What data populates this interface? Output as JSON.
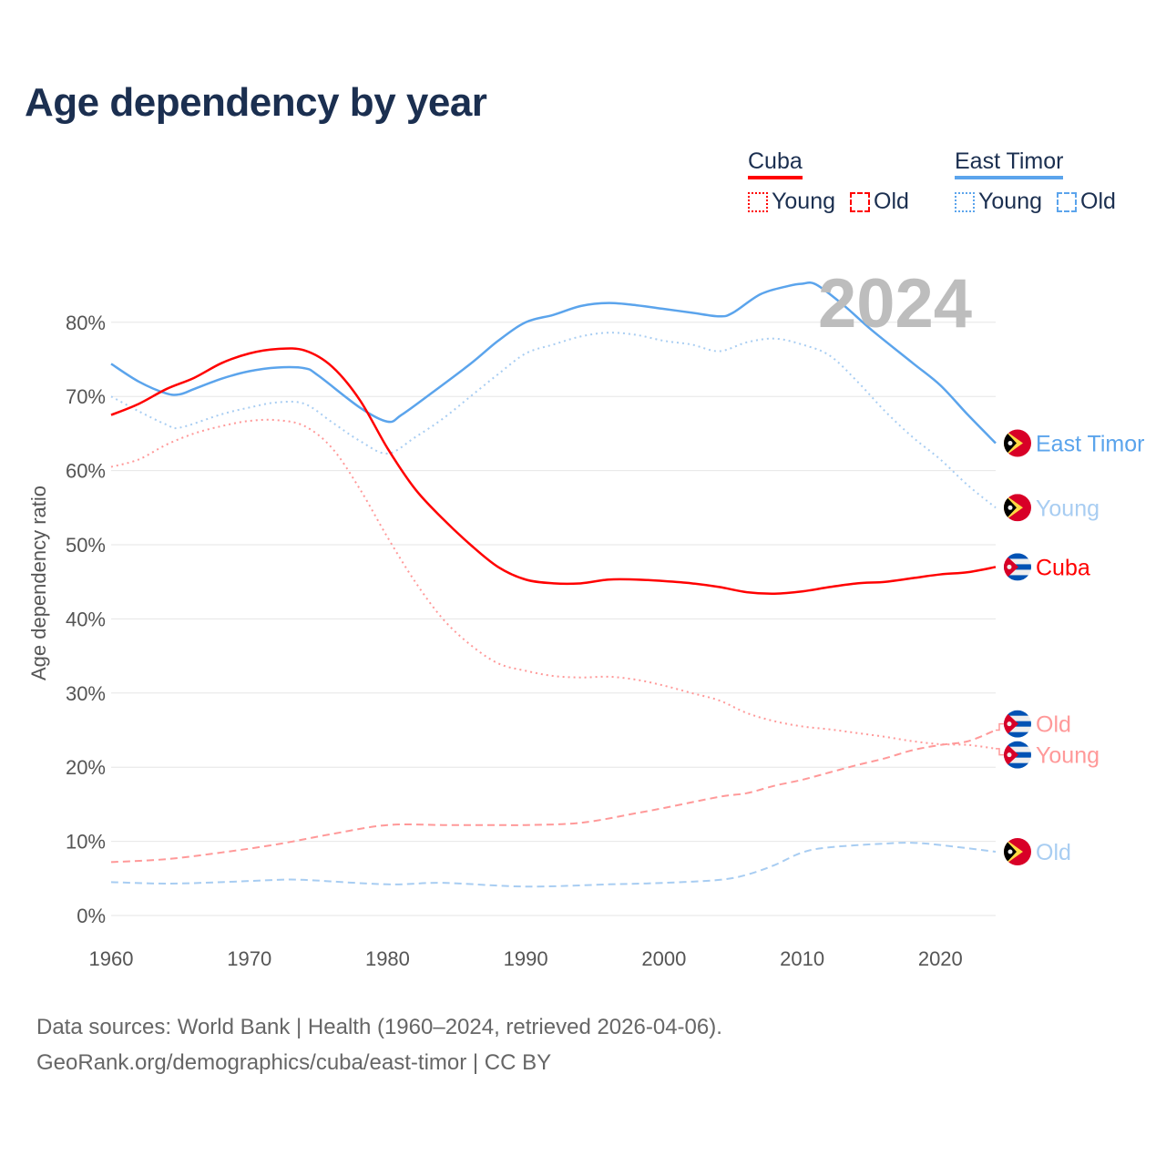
{
  "title": "Age dependency by year",
  "year_badge": "2024",
  "legend": {
    "cuba": {
      "name": "Cuba",
      "young": "Young",
      "old": "Old",
      "color": "#ff0000"
    },
    "east_timor": {
      "name": "East Timor",
      "young": "Young",
      "old": "Old",
      "color": "#5ba4ec"
    }
  },
  "footer": {
    "line1": "Data sources: World Bank | Health (1960–2024, retrieved 2026-04-06).",
    "line2": "GeoRank.org/demographics/cuba/east-timor | CC BY"
  },
  "chart_data": {
    "type": "line",
    "title": "Age dependency by year",
    "xlabel": "",
    "ylabel": "Age dependency ratio",
    "xlim": [
      1960,
      2024
    ],
    "ylim": [
      0,
      85
    ],
    "x_ticks": [
      1960,
      1970,
      1980,
      1990,
      2000,
      2010,
      2020
    ],
    "y_ticks": [
      0,
      10,
      20,
      30,
      40,
      50,
      60,
      70,
      80
    ],
    "y_tick_labels": [
      "0%",
      "10%",
      "20%",
      "30%",
      "40%",
      "50%",
      "60%",
      "70%",
      "80%"
    ],
    "grid": true,
    "series": [
      {
        "name": "East Timor",
        "label": "East Timor",
        "country": "east-timor",
        "style": "solid",
        "color": "#5ba4ec",
        "x": [
          1960,
          1962,
          1964,
          1965,
          1966,
          1968,
          1970,
          1972,
          1974,
          1975,
          1978,
          1980,
          1981,
          1983,
          1986,
          1988,
          1990,
          1992,
          1994,
          1996,
          1998,
          2000,
          2002,
          2004,
          2005,
          2007,
          2009,
          2010,
          2011,
          2013,
          2015,
          2018,
          2020,
          2022,
          2024
        ],
        "y": [
          74.4,
          72,
          70.4,
          70.3,
          71,
          72.4,
          73.4,
          73.9,
          73.8,
          72.8,
          68.5,
          66.6,
          67.5,
          70.2,
          74.4,
          77.5,
          80,
          81,
          82.2,
          82.6,
          82.3,
          81.8,
          81.3,
          80.8,
          81.3,
          83.8,
          84.9,
          85.2,
          85.1,
          82.3,
          79,
          74.5,
          71.5,
          67.5,
          63.7
        ]
      },
      {
        "name": "East Timor Young",
        "label": "Young",
        "country": "east-timor",
        "style": "dotted",
        "color": "#a8cdf2",
        "x": [
          1960,
          1962,
          1964,
          1965,
          1968,
          1970,
          1972,
          1974,
          1976,
          1978,
          1980,
          1982,
          1984,
          1986,
          1988,
          1990,
          1992,
          1994,
          1996,
          1998,
          2000,
          2002,
          2004,
          2006,
          2008,
          2010,
          2012,
          2014,
          2016,
          2018,
          2020,
          2022,
          2024
        ],
        "y": [
          70,
          68,
          66.2,
          65.8,
          67.6,
          68.5,
          69.2,
          69,
          66.5,
          64,
          62.3,
          64.5,
          67,
          70,
          73,
          75.8,
          77,
          78.1,
          78.6,
          78.3,
          77.5,
          77,
          76.1,
          77.3,
          77.8,
          77,
          75.5,
          72,
          68,
          64.5,
          61.5,
          58,
          55
        ]
      },
      {
        "name": "Cuba",
        "label": "Cuba",
        "country": "cuba",
        "style": "solid",
        "color": "#ff0000",
        "x": [
          1960,
          1962,
          1964,
          1966,
          1968,
          1970,
          1972,
          1974,
          1976,
          1978,
          1980,
          1982,
          1984,
          1986,
          1988,
          1990,
          1992,
          1994,
          1996,
          1998,
          2000,
          2002,
          2004,
          2006,
          2008,
          2010,
          2012,
          2014,
          2016,
          2018,
          2020,
          2022,
          2024
        ],
        "y": [
          67.5,
          69,
          71,
          72.5,
          74.5,
          75.8,
          76.4,
          76.2,
          74,
          69.5,
          63,
          57.5,
          53.5,
          50,
          47,
          45.3,
          44.8,
          44.8,
          45.3,
          45.3,
          45.1,
          44.8,
          44.3,
          43.6,
          43.4,
          43.7,
          44.3,
          44.8,
          45,
          45.5,
          46,
          46.3,
          47
        ]
      },
      {
        "name": "Cuba Old",
        "label": "Old",
        "country": "cuba",
        "style": "dashed",
        "color": "#ff9999",
        "x": [
          1960,
          1964,
          1968,
          1972,
          1976,
          1980,
          1984,
          1988,
          1990,
          1994,
          1998,
          2000,
          2004,
          2006,
          2008,
          2010,
          2012,
          2014,
          2016,
          2018,
          2020,
          2022,
          2024
        ],
        "y": [
          7.2,
          7.6,
          8.5,
          9.6,
          11,
          12.2,
          12.2,
          12.2,
          12.2,
          12.5,
          13.8,
          14.5,
          16,
          16.5,
          17.5,
          18.3,
          19.3,
          20.3,
          21.2,
          22.3,
          23,
          23.5,
          25
        ]
      },
      {
        "name": "Cuba Young",
        "label": "Young",
        "country": "cuba",
        "style": "dotted",
        "color": "#ff9999",
        "x": [
          1960,
          1962,
          1964,
          1966,
          1968,
          1970,
          1972,
          1974,
          1976,
          1978,
          1980,
          1982,
          1984,
          1986,
          1988,
          1990,
          1992,
          1994,
          1996,
          1998,
          2000,
          2002,
          2004,
          2006,
          2008,
          2010,
          2012,
          2014,
          2016,
          2018,
          2020,
          2022,
          2024
        ],
        "y": [
          60.5,
          61.5,
          63.5,
          65,
          66,
          66.7,
          66.8,
          66,
          63,
          57.5,
          51,
          45,
          40,
          36.5,
          34,
          33,
          32.3,
          32.1,
          32.2,
          31.8,
          31,
          30,
          29,
          27.3,
          26.2,
          25.5,
          25.1,
          24.6,
          24.1,
          23.5,
          23.1,
          23,
          22.5
        ]
      },
      {
        "name": "East Timor Old",
        "label": "Old",
        "country": "east-timor",
        "style": "dashed",
        "color": "#a8cdf2",
        "x": [
          1960,
          1964,
          1968,
          1972,
          1974,
          1980,
          1984,
          1990,
          1996,
          2000,
          2004,
          2006,
          2008,
          2010,
          2012,
          2016,
          2018,
          2020,
          2024
        ],
        "y": [
          4.5,
          4.3,
          4.5,
          4.8,
          4.8,
          4.2,
          4.4,
          3.9,
          4.2,
          4.4,
          4.8,
          5.5,
          6.8,
          8.5,
          9.2,
          9.7,
          9.8,
          9.5,
          8.6
        ]
      }
    ]
  }
}
